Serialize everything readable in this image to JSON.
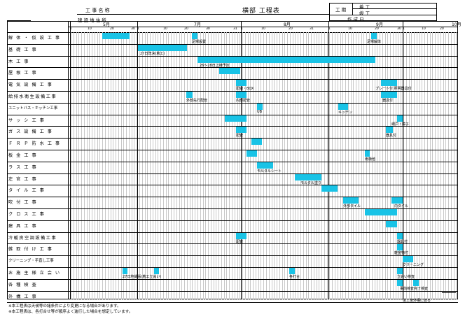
{
  "header": {
    "koji_label": "工 事 名 称",
    "site_label": "建 設 地 住 所",
    "title": "横部 工程表",
    "period_label": "工 期",
    "start_label": "着 工",
    "end_label": "竣 工",
    "made_label": "作 成 日"
  },
  "months": [
    {
      "label": "5月",
      "col": 50
    },
    {
      "label": "7月",
      "col": 180
    },
    {
      "label": "8月",
      "col": 308
    },
    {
      "label": "9月",
      "col": 440
    },
    {
      "label": "10月",
      "col": 548
    }
  ],
  "day_ticks": [
    {
      "label": "1",
      "col": 3
    },
    {
      "label": "10",
      "col": 28
    },
    {
      "label": "20",
      "col": 60
    },
    {
      "label": "30",
      "col": 90
    },
    {
      "label": "1",
      "col": 99
    },
    {
      "label": "10",
      "col": 136
    },
    {
      "label": "20",
      "col": 166
    },
    {
      "label": "30",
      "col": 197
    },
    {
      "label": "31",
      "col": 236
    },
    {
      "label": "1",
      "col": 247
    },
    {
      "label": "10",
      "col": 276
    },
    {
      "label": "20",
      "col": 315
    },
    {
      "label": "31",
      "col": 345
    },
    {
      "label": "1",
      "col": 372
    },
    {
      "label": "10",
      "col": 400
    },
    {
      "label": "20",
      "col": 438
    },
    {
      "label": "30",
      "col": 470
    },
    {
      "label": "1",
      "col": 478
    },
    {
      "label": "10",
      "col": 505
    },
    {
      "label": "20",
      "col": 531
    }
  ],
  "rows": [
    {
      "label": "解 体 ・ 仮 設 工 事",
      "small": false,
      "bars": [
        {
          "from": 49,
          "to": 88
        },
        {
          "from": 177,
          "to": 185
        },
        {
          "from": 433,
          "to": 441
        }
      ],
      "notes": [
        {
          "text": "足場設置",
          "col": 177
        },
        {
          "text": "足場解体",
          "col": 427
        }
      ]
    },
    {
      "label": "基 礎 工 事",
      "small": false,
      "bars": [
        {
          "from": 100,
          "to": 170
        }
      ],
      "notes": [
        {
          "text": "27日既決(着工)",
          "col": 103
        }
      ]
    },
    {
      "label": "木 工 事",
      "small": false,
      "bars": [
        {
          "from": 185,
          "to": 439
        }
      ],
      "notes": [
        {
          "text": "26〜28日上棟予定",
          "col": 188
        }
      ]
    },
    {
      "label": "屋 根 工 事",
      "small": false,
      "bars": [
        {
          "from": 216,
          "to": 246
        }
      ],
      "notes": []
    },
    {
      "label": "電 気 設 備 工 事",
      "small": false,
      "bars": [
        {
          "from": 240,
          "to": 255
        },
        {
          "from": 447,
          "to": 470
        }
      ],
      "notes": [
        {
          "text": "配線・BOX",
          "col": 240
        },
        {
          "text": "プレート付 照明器具付",
          "col": 439
        }
      ]
    },
    {
      "label": "給排水衛生設備工事",
      "small": false,
      "bars": [
        {
          "from": 169,
          "to": 178
        },
        {
          "from": 240,
          "to": 255
        },
        {
          "from": 447,
          "to": 470
        }
      ],
      "notes": [
        {
          "text": "外部先行配管",
          "col": 169
        },
        {
          "text": "内部配管",
          "col": 240
        },
        {
          "text": "器具付",
          "col": 449
        }
      ]
    },
    {
      "label": "ユニットバス・キッチン工事",
      "small": true,
      "bars": [
        {
          "from": 270,
          "to": 278
        },
        {
          "from": 386,
          "to": 400
        }
      ],
      "notes": [
        {
          "text": "UB",
          "col": 270
        },
        {
          "text": "キッチン",
          "col": 386
        }
      ]
    },
    {
      "label": "サ ッ シ 工 事",
      "small": false,
      "bars": [
        {
          "from": 224,
          "to": 255
        },
        {
          "from": 470,
          "to": 478
        }
      ],
      "notes": [
        {
          "text": "網戸・障子",
          "col": 462
        }
      ]
    },
    {
      "label": "ガ ス 設 備 工 事",
      "small": false,
      "bars": [
        {
          "from": 240,
          "to": 255
        },
        {
          "from": 454,
          "to": 464
        }
      ],
      "notes": [
        {
          "text": "配管",
          "col": 240
        },
        {
          "text": "器具付",
          "col": 454
        }
      ]
    },
    {
      "label": "Ｆ Ｒ Ｐ 防 水 工 事",
      "small": false,
      "bars": [
        {
          "from": 262,
          "to": 277
        }
      ],
      "notes": []
    },
    {
      "label": "板 金 工 事",
      "small": false,
      "bars": [
        {
          "from": 255,
          "to": 270
        },
        {
          "from": 424,
          "to": 431
        }
      ],
      "notes": [
        {
          "text": "雨樋他",
          "col": 424
        }
      ]
    },
    {
      "label": "ラ ス 工 事",
      "small": false,
      "bars": [
        {
          "from": 270,
          "to": 293
        }
      ],
      "notes": [
        {
          "text": "モルタルシート",
          "col": 270
        }
      ]
    },
    {
      "label": "左 官 工 事",
      "small": false,
      "bars": [
        {
          "from": 324,
          "to": 362
        }
      ],
      "notes": [
        {
          "text": "モルタル塗り",
          "col": 332
        }
      ]
    },
    {
      "label": "タ イ ル 工 事",
      "small": false,
      "bars": [
        {
          "from": 362,
          "to": 385
        }
      ],
      "notes": []
    },
    {
      "label": "吹 付 工 事",
      "small": false,
      "bars": [
        {
          "from": 393,
          "to": 415
        },
        {
          "from": 462,
          "to": 478
        }
      ],
      "notes": [
        {
          "text": "外部タイル",
          "col": 393
        },
        {
          "text": "内タイル",
          "col": 466
        }
      ]
    },
    {
      "label": "ク ロ ス 工 事",
      "small": false,
      "bars": [
        {
          "from": 424,
          "to": 470
        }
      ],
      "notes": []
    },
    {
      "label": "建 具 工 事",
      "small": false,
      "bars": [
        {
          "from": 454,
          "to": 470
        }
      ],
      "notes": []
    },
    {
      "label": "冷暖房空調設備工事",
      "small": false,
      "bars": [
        {
          "from": 240,
          "to": 255
        },
        {
          "from": 470,
          "to": 478
        }
      ],
      "notes": [
        {
          "text": "配管",
          "col": 240
        },
        {
          "text": "器具付",
          "col": 470
        }
      ]
    },
    {
      "label": "雑 取 付 け 工 事",
      "small": false,
      "bars": [
        {
          "from": 470,
          "to": 478
        }
      ],
      "notes": [
        {
          "text": "雑金物付",
          "col": 466
        }
      ]
    },
    {
      "label": "クリーニング・手直し工事",
      "small": true,
      "bars": [
        {
          "from": 478,
          "to": 493
        }
      ],
      "notes": [
        {
          "text": "クリーニング",
          "col": 478
        }
      ]
    },
    {
      "label": "お 施 主 様 立 会 い",
      "small": false,
      "bars": [
        {
          "from": 78,
          "to": 85
        },
        {
          "from": 123,
          "to": 130
        },
        {
          "from": 316,
          "to": 324
        },
        {
          "from": 470,
          "to": 478
        }
      ],
      "notes": [
        {
          "text": "27日地縄張(着工立会い)",
          "col": 78
        },
        {
          "text": "各打合",
          "col": 316
        },
        {
          "text": "立会い検査",
          "col": 470
        }
      ]
    },
    {
      "label": "各 種 検 査",
      "small": false,
      "bars": [
        {
          "from": 470,
          "to": 478
        },
        {
          "from": 493,
          "to": 501
        }
      ],
      "notes": [
        {
          "text": "事前検査完了検査",
          "col": 474
        }
      ]
    },
    {
      "label": "外 構 工 事",
      "small": false,
      "bars": [],
      "notes": [
        {
          "text": "竣工後外構に続る",
          "col": 478
        }
      ]
    }
  ],
  "footnotes": [
    "※本工程表は天候等の諸条件により変更になる場合があります。",
    "※本工程表は、各打合せ等が順序よく進行した場合を想定しています。"
  ]
}
